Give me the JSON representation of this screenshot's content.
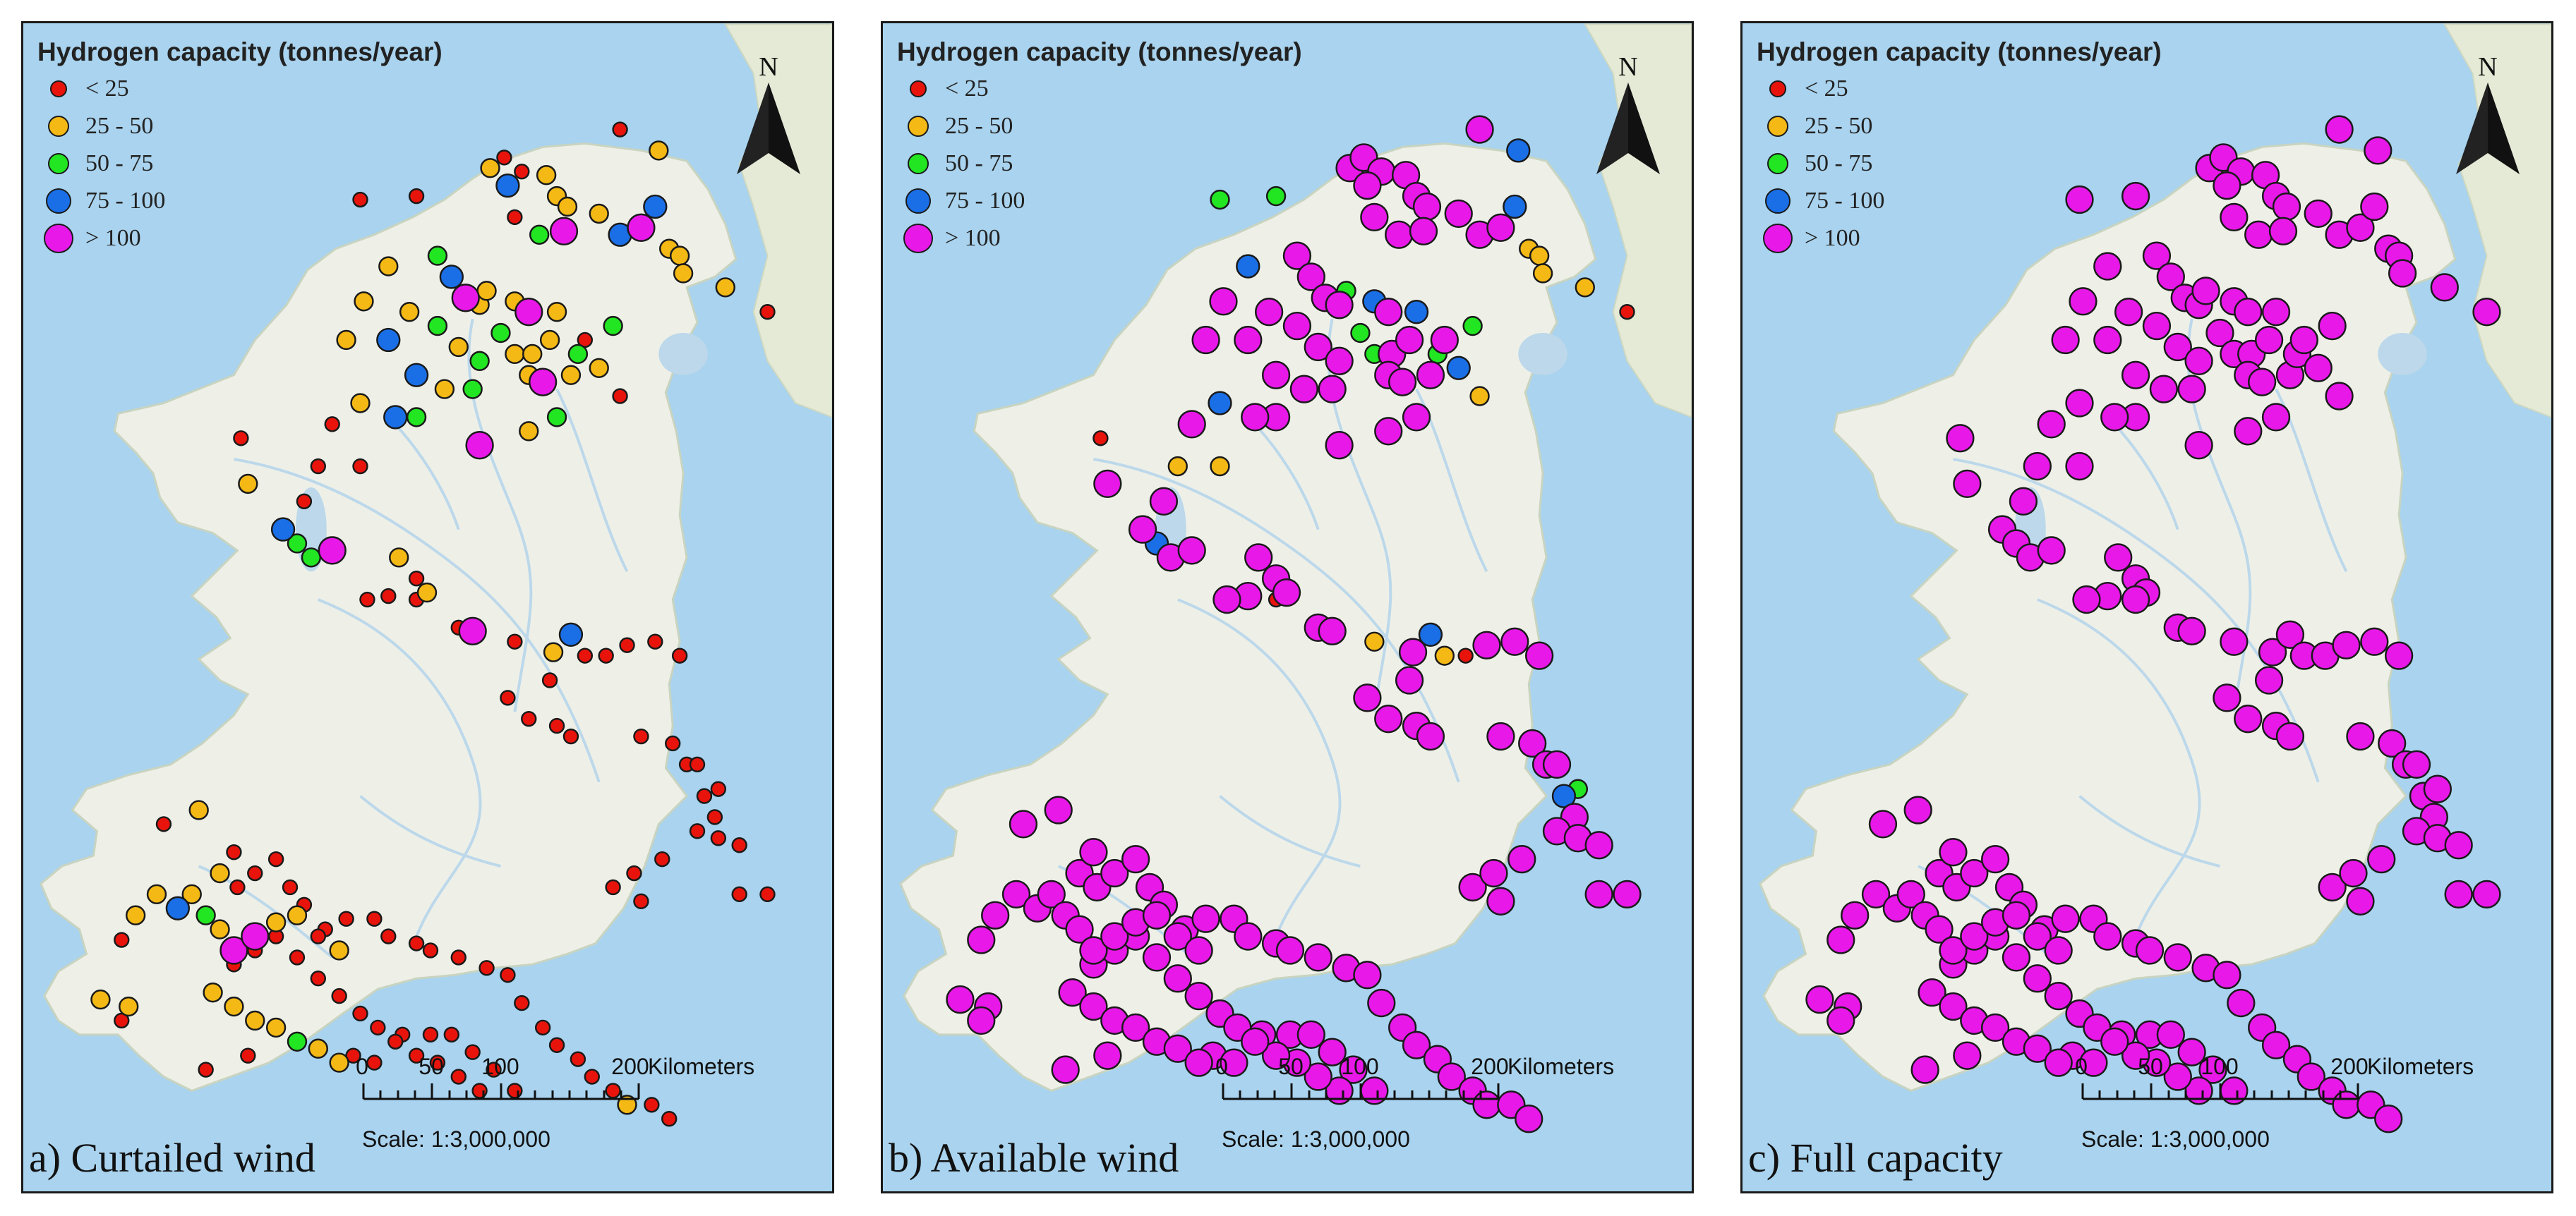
{
  "legend": {
    "title": "Hydrogen capacity (tonnes/year)",
    "classes": [
      {
        "label": "< 25",
        "color": "#e8140c",
        "size": "small"
      },
      {
        "label": "25 - 50",
        "color": "#f5b915",
        "size": "medium"
      },
      {
        "label": "50 - 75",
        "color": "#22e622",
        "size": "medium"
      },
      {
        "label": "75 - 100",
        "color": "#1a6fe6",
        "size": "large"
      },
      {
        "label": "> 100",
        "color": "#e818e8",
        "size": "xlarge"
      }
    ]
  },
  "north_arrow": {
    "letter": "N"
  },
  "scale_bar": {
    "ticks": [
      "0",
      "50",
      "100",
      "200"
    ],
    "unit": "Kilometers",
    "scale_text": "Scale: 1:3,000,000"
  },
  "colors": {
    "sea": "#a9d3ee",
    "land": "#eef0e8",
    "neighbor_land": "#e4ead6",
    "river": "#bcd8ea"
  },
  "panels": [
    {
      "caption": "a) Curtailed wind"
    },
    {
      "caption": "b) Available wind"
    },
    {
      "caption": "c) Full capacity"
    }
  ]
}
